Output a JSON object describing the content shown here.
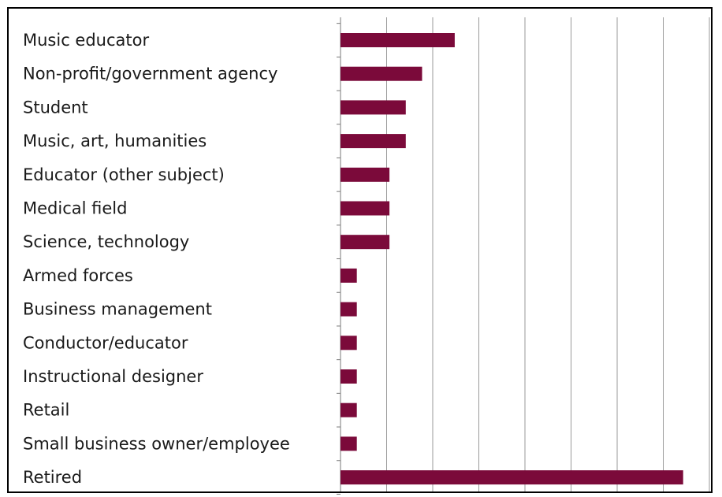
{
  "chart_data": {
    "type": "bar",
    "orientation": "horizontal",
    "title": "",
    "xlabel": "",
    "ylabel": "",
    "categories": [
      "Music educator",
      "Non-profit/government agency",
      "Student",
      "Music, art, humanities",
      "Educator (other subject)",
      "Medical field",
      "Science, technology",
      "Armed forces",
      "Business management",
      "Conductor/educator",
      "Instructional designer",
      "Retail",
      "Small business owner/employee",
      "Retired"
    ],
    "values": [
      7,
      5,
      4,
      4,
      3,
      3,
      3,
      1,
      1,
      1,
      1,
      1,
      1,
      21
    ],
    "xlim": [
      0,
      22.5
    ],
    "grid": true,
    "legend": "none",
    "bar_color": "#7b0a3a",
    "grid_color": "#9a9a9a"
  }
}
